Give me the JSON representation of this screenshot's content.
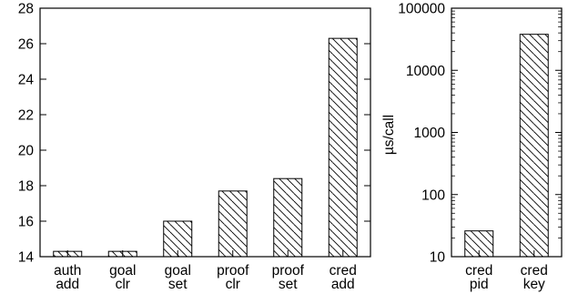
{
  "chart_data": [
    {
      "type": "bar",
      "categories": [
        [
          "auth",
          "add"
        ],
        [
          "goal",
          "clr"
        ],
        [
          "goal",
          "set"
        ],
        [
          "proof",
          "clr"
        ],
        [
          "proof",
          "set"
        ],
        [
          "cred",
          "add"
        ]
      ],
      "values": [
        14.3,
        14.3,
        16.0,
        17.7,
        18.4,
        26.3
      ],
      "ylim": [
        14,
        28
      ],
      "yticks": [
        14,
        16,
        18,
        20,
        22,
        24,
        26,
        28
      ],
      "ytick_labels": [
        "14",
        "16",
        "18",
        "20",
        "22",
        "24",
        "26",
        "28"
      ],
      "yscale": "linear",
      "pattern": "diagonal hatch",
      "ylabel": ""
    },
    {
      "type": "bar",
      "categories": [
        [
          "cred",
          "pid"
        ],
        [
          "cred",
          "key"
        ]
      ],
      "values": [
        26,
        38000
      ],
      "ylim": [
        10,
        100000
      ],
      "yticks": [
        10,
        100,
        1000,
        10000,
        100000
      ],
      "ytick_labels": [
        "10",
        "100",
        "1000",
        "10000",
        "100000"
      ],
      "yscale": "log",
      "pattern": "diagonal hatch",
      "ylabel": "µs/call"
    }
  ],
  "colors": {
    "stroke": "#000000",
    "background": "#ffffff"
  }
}
